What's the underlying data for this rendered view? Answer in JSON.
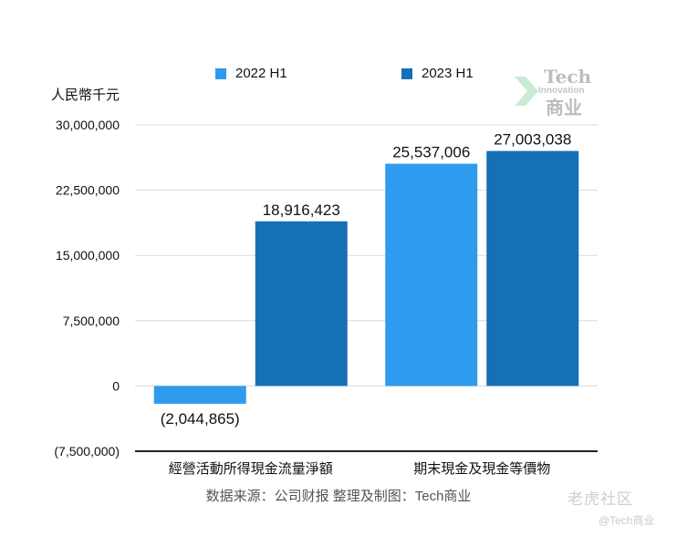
{
  "chart_data": {
    "type": "bar",
    "categories": [
      "經營活動所得現金流量淨額",
      "期末現金及現金等價物"
    ],
    "series": [
      {
        "name": "2022 H1",
        "values": [
          -2044865,
          25537006
        ],
        "labels": [
          "(2,044,865)",
          "25,537,006"
        ],
        "color": "#2e9bee"
      },
      {
        "name": "2023 H1",
        "values": [
          18916423,
          27003038
        ],
        "labels": [
          "18,916,423",
          "27,003,038"
        ],
        "color": "#1670b6"
      }
    ],
    "ylabel": "人民幣千元",
    "ylim": [
      -7500000,
      30000000
    ],
    "yticks": [
      30000000,
      22500000,
      15000000,
      7500000,
      0,
      -7500000
    ],
    "ytick_labels": [
      "30,000,000",
      "22,500,000",
      "15,000,000",
      "7,500,000",
      "0",
      "(7,500,000)"
    ],
    "grid": true,
    "legend_position": "top"
  },
  "source_note": "数据来源：公司财报 整理及制图：Tech商业",
  "watermark": {
    "logo_line1": "Tech",
    "logo_line2": "Innovation",
    "logo_line3": "商业",
    "corner_brand": "老虎社区",
    "corner_handle": "@Tech商业"
  },
  "colors": {
    "series_2022": "#2e9bee",
    "series_2023": "#1670b6",
    "grid": "#d9d9d9",
    "axis": "#222222"
  }
}
